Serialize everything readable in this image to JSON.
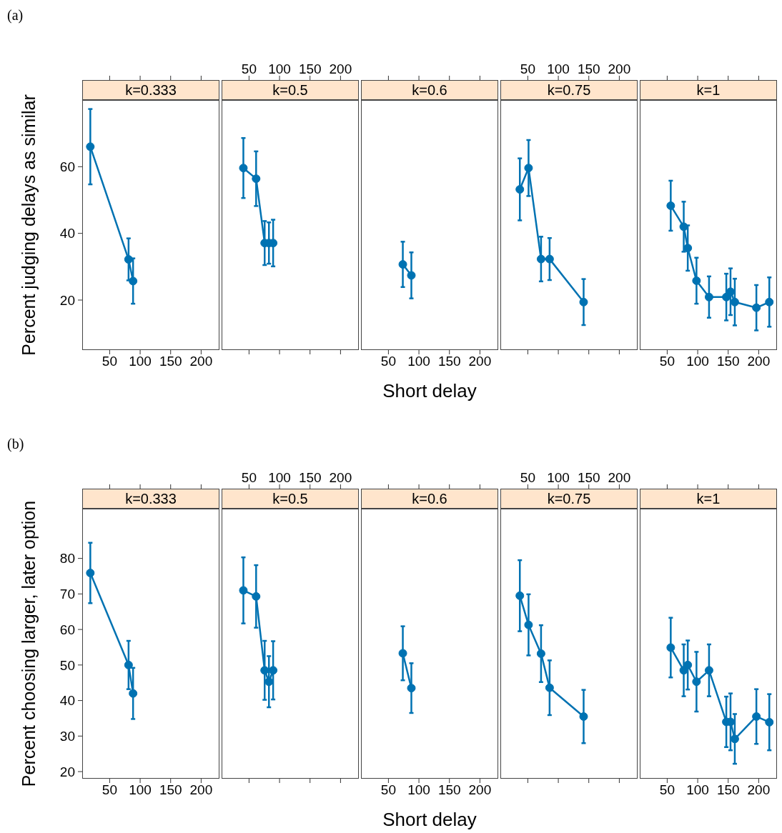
{
  "chart_data": [
    {
      "type": "line",
      "title": "k=0.333",
      "ylabel": "Percent judging delays as similar",
      "annotations": [
        "(a)"
      ],
      "x": [
        18.3,
        81.0,
        88.4
      ],
      "series": [
        {
          "color": "#0072b2",
          "values": [
            66.0,
            32.2,
            25.7
          ],
          "errors": [
            11.3,
            6.3,
            6.8
          ]
        }
      ],
      "xlim": [
        5,
        230
      ],
      "xticks": [
        50,
        100,
        150,
        200
      ],
      "ylim": [
        5,
        80
      ],
      "yticks": [
        20,
        40,
        60
      ],
      "marker": "circle",
      "line_style": "solid"
    },
    {
      "type": "line",
      "title": "k=0.5",
      "x": [
        40.7,
        61.6,
        75.6,
        82.6,
        89.5
      ],
      "series": [
        {
          "color": "#0072b2",
          "values": [
            59.6,
            56.4,
            37.1,
            37.1,
            37.1
          ],
          "errors": [
            9.0,
            8.2,
            6.6,
            6.2,
            7.0
          ]
        }
      ],
      "xlim": [
        5,
        230
      ],
      "xticks": [
        50,
        100,
        150,
        200
      ],
      "ylim": [
        5,
        80
      ],
      "yticks": [
        20,
        40,
        60
      ],
      "tick_labels": "x",
      "marker": "circle",
      "line_style": "solid"
    },
    {
      "type": "line",
      "title": "k=0.6",
      "xlabel": "Short delay",
      "x": [
        73.6,
        87.6
      ],
      "series": [
        {
          "color": "#0072b2",
          "values": [
            30.7,
            27.4
          ],
          "errors": [
            6.8,
            6.9
          ]
        }
      ],
      "xlim": [
        5,
        230
      ],
      "xticks": [
        50,
        100,
        150,
        200
      ],
      "ylim": [
        5,
        80
      ],
      "yticks": [
        20,
        40,
        60
      ],
      "tick_labels": "x",
      "marker": "circle",
      "line_style": "solid"
    },
    {
      "type": "line",
      "title": "k=0.75",
      "x": [
        36.9,
        51.2,
        71.7,
        85.7,
        141.5
      ],
      "series": [
        {
          "color": "#0072b2",
          "values": [
            53.2,
            59.6,
            32.3,
            32.3,
            19.4
          ],
          "errors": [
            9.3,
            8.4,
            6.7,
            6.3,
            6.9
          ]
        }
      ],
      "xlim": [
        5,
        230
      ],
      "xticks": [
        50,
        100,
        150,
        200
      ],
      "ylim": [
        5,
        80
      ],
      "yticks": [
        20,
        40,
        60
      ],
      "tick_labels": "x",
      "marker": "circle",
      "line_style": "solid"
    },
    {
      "type": "line",
      "title": "k=1",
      "x": [
        55.8,
        77.1,
        83.7,
        98.0,
        118.6,
        146.9,
        153.8,
        160.8,
        196.2,
        217.4
      ],
      "series": [
        {
          "color": "#0072b2",
          "values": [
            48.3,
            42.0,
            35.6,
            25.8,
            20.9,
            20.9,
            22.5,
            19.4,
            17.7,
            19.4
          ],
          "errors": [
            7.5,
            7.5,
            6.8,
            6.9,
            6.2,
            7.0,
            7.0,
            7.0,
            6.8,
            7.4
          ]
        }
      ],
      "xlim": [
        5,
        230
      ],
      "xticks": [
        50,
        100,
        150,
        200
      ],
      "ylim": [
        5,
        80
      ],
      "yticks": [
        20,
        40,
        60
      ],
      "tick_labels": "x",
      "marker": "circle",
      "line_style": "solid"
    },
    {
      "type": "line",
      "title": "k=0.333",
      "ylabel": "Percent choosing larger, later option",
      "annotations": [
        "(b)"
      ],
      "x": [
        18.3,
        81.0,
        88.4
      ],
      "series": [
        {
          "color": "#0072b2",
          "values": [
            75.9,
            50.0,
            42.0
          ],
          "errors": [
            8.5,
            6.8,
            7.2
          ]
        }
      ],
      "xlim": [
        5,
        230
      ],
      "xticks": [
        50,
        100,
        150,
        200
      ],
      "ylim": [
        18,
        94
      ],
      "yticks": [
        20,
        30,
        40,
        50,
        60,
        70,
        80
      ],
      "marker": "circle",
      "line_style": "solid"
    },
    {
      "type": "line",
      "title": "k=0.5",
      "x": [
        40.7,
        61.6,
        75.6,
        82.6,
        89.5
      ],
      "series": [
        {
          "color": "#0072b2",
          "values": [
            71.0,
            69.3,
            48.5,
            45.3,
            48.5
          ],
          "errors": [
            9.3,
            8.8,
            8.3,
            7.2,
            8.2
          ]
        }
      ],
      "xlim": [
        5,
        230
      ],
      "xticks": [
        50,
        100,
        150,
        200
      ],
      "ylim": [
        18,
        94
      ],
      "yticks": [
        20,
        30,
        40,
        50,
        60,
        70,
        80
      ],
      "tick_labels": "x",
      "marker": "circle",
      "line_style": "solid"
    },
    {
      "type": "line",
      "title": "k=0.6",
      "xlabel": "Short delay",
      "x": [
        73.6,
        87.6
      ],
      "series": [
        {
          "color": "#0072b2",
          "values": [
            53.3,
            43.5
          ],
          "errors": [
            7.6,
            7.0
          ]
        }
      ],
      "xlim": [
        5,
        230
      ],
      "xticks": [
        50,
        100,
        150,
        200
      ],
      "ylim": [
        18,
        94
      ],
      "yticks": [
        20,
        30,
        40,
        50,
        60,
        70,
        80
      ],
      "tick_labels": "x",
      "marker": "circle",
      "line_style": "solid"
    },
    {
      "type": "line",
      "title": "k=0.75",
      "x": [
        36.9,
        51.2,
        71.7,
        85.7,
        141.5
      ],
      "series": [
        {
          "color": "#0072b2",
          "values": [
            69.5,
            61.3,
            53.2,
            43.6,
            35.5
          ],
          "errors": [
            10.0,
            8.6,
            8.0,
            7.7,
            7.5
          ]
        }
      ],
      "xlim": [
        5,
        230
      ],
      "xticks": [
        50,
        100,
        150,
        200
      ],
      "ylim": [
        18,
        94
      ],
      "yticks": [
        20,
        30,
        40,
        50,
        60,
        70,
        80
      ],
      "tick_labels": "x",
      "marker": "circle",
      "line_style": "solid"
    },
    {
      "type": "line",
      "title": "k=1",
      "x": [
        55.8,
        77.1,
        83.7,
        98.0,
        118.6,
        146.9,
        153.8,
        160.8,
        196.2,
        217.4
      ],
      "series": [
        {
          "color": "#0072b2",
          "values": [
            54.9,
            48.5,
            50.0,
            45.3,
            48.5,
            34.0,
            34.0,
            29.2,
            35.5,
            33.9
          ],
          "errors": [
            8.4,
            7.3,
            6.9,
            8.4,
            7.3,
            7.1,
            8.0,
            7.0,
            7.7,
            7.9
          ]
        }
      ],
      "xlim": [
        5,
        230
      ],
      "xticks": [
        50,
        100,
        150,
        200
      ],
      "ylim": [
        18,
        94
      ],
      "yticks": [
        20,
        30,
        40,
        50,
        60,
        70,
        80
      ],
      "tick_labels": "x",
      "marker": "circle",
      "line_style": "solid"
    }
  ]
}
